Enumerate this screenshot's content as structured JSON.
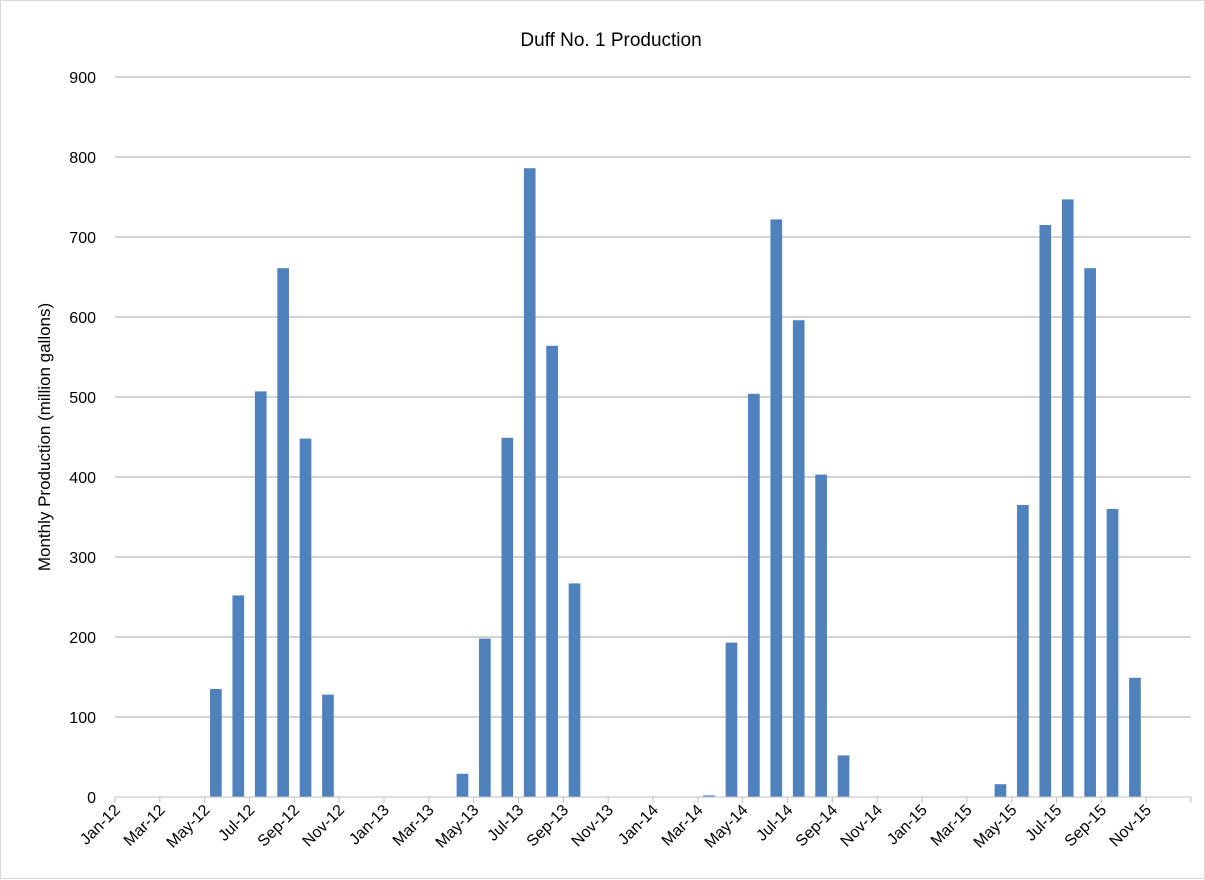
{
  "chart_data": {
    "type": "bar",
    "title": "Duff No. 1 Production",
    "xlabel": "",
    "ylabel": "Monthly Production (million gallons)",
    "ylim": [
      0,
      900
    ],
    "yticks": [
      0,
      100,
      200,
      300,
      400,
      500,
      600,
      700,
      800,
      900
    ],
    "grid": true,
    "legend": "none",
    "bar_color": "#4f81bd",
    "categories": [
      "Jan-12",
      "Feb-12",
      "Mar-12",
      "Apr-12",
      "May-12",
      "Jun-12",
      "Jul-12",
      "Aug-12",
      "Sep-12",
      "Oct-12",
      "Nov-12",
      "Dec-12",
      "Jan-13",
      "Feb-13",
      "Mar-13",
      "Apr-13",
      "May-13",
      "Jun-13",
      "Jul-13",
      "Aug-13",
      "Sep-13",
      "Oct-13",
      "Nov-13",
      "Dec-13",
      "Jan-14",
      "Feb-14",
      "Mar-14",
      "Apr-14",
      "May-14",
      "Jun-14",
      "Jul-14",
      "Aug-14",
      "Sep-14",
      "Oct-14",
      "Nov-14",
      "Dec-14",
      "Jan-15",
      "Feb-15",
      "Mar-15",
      "Apr-15",
      "May-15",
      "Jun-15",
      "Jul-15",
      "Aug-15",
      "Sep-15",
      "Oct-15",
      "Nov-15",
      "Dec-15"
    ],
    "labeled_ticks": [
      "Jan-12",
      "Mar-12",
      "May-12",
      "Jul-12",
      "Sep-12",
      "Nov-12",
      "Jan-13",
      "Mar-13",
      "May-13",
      "Jul-13",
      "Sep-13",
      "Nov-13",
      "Jan-14",
      "Mar-14",
      "May-14",
      "Jul-14",
      "Sep-14",
      "Nov-14",
      "Jan-15",
      "Mar-15",
      "May-15",
      "Jul-15",
      "Sep-15",
      "Nov-15"
    ],
    "values": [
      0,
      0,
      0,
      0,
      135,
      252,
      507,
      661,
      448,
      128,
      0,
      0,
      0,
      0,
      0,
      29,
      198,
      449,
      786,
      564,
      267,
      0,
      0,
      0,
      0,
      0,
      2,
      193,
      504,
      722,
      596,
      403,
      52,
      0,
      0,
      0,
      0,
      0,
      0,
      16,
      365,
      715,
      747,
      661,
      360,
      149,
      0,
      0
    ]
  }
}
